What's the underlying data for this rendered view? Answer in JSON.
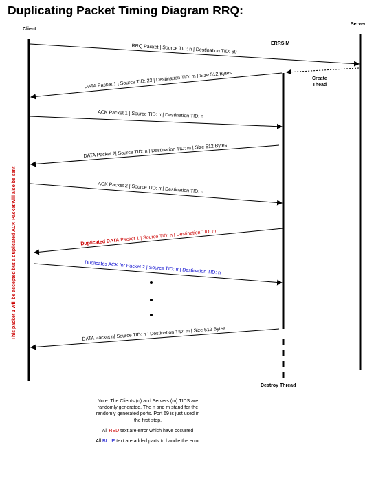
{
  "title": "Duplicating Packet Timing Diagram RRQ:",
  "participants": {
    "client": "Client",
    "server": "Server",
    "errsim": "ERRSIM"
  },
  "create_thread": "Create\nThead",
  "destroy_thread": "Destroy Thread",
  "side_note": "This  packet 1 will  be accepted but a duplicated ACK Packet will also be sent",
  "messages": [
    {
      "text": "RRQ Packet | Source TID: n | Destination TID: 69"
    },
    {
      "text": "DATA Packet 1 | Source TID: 23 | Destination TID: m | Size 512 Bytes"
    },
    {
      "text": "ACK Packet 1 | Source TID: m| Destination TID: n"
    },
    {
      "text": "DATA Packet 2| Source TID: n | Destination TID: m | Size 512 Bytes"
    },
    {
      "text": "ACK Packet 2 | Source TID: m| Destination TID: n"
    },
    {
      "highlight": "Duplicated DATA",
      "text": " Packet 1 | Source TID: n | Destination TID: m"
    },
    {
      "highlight": "Duplicates ACK",
      "text": " for Packet 2 | Source TID: m| Destination TID: n"
    },
    {
      "text": "DATA Packet n| Source TID: n | Destination TID: m | Size 512 Bytes"
    }
  ],
  "note": {
    "line1": "Note:  The Clients (n) and Servers (m) TIDS are randomly generated. The n and m stand for the randomly generated ports. Port 69 is just used in the first step.",
    "line2_pre": "All ",
    "line2_red": "RED",
    "line2_post": " text are error which have occurred",
    "line3_pre": "All ",
    "line3_blue": "BLUE",
    "line3_post": " text are added parts to handle the error"
  },
  "colors": {
    "error": "#cc0000",
    "handling": "#0000cc"
  }
}
